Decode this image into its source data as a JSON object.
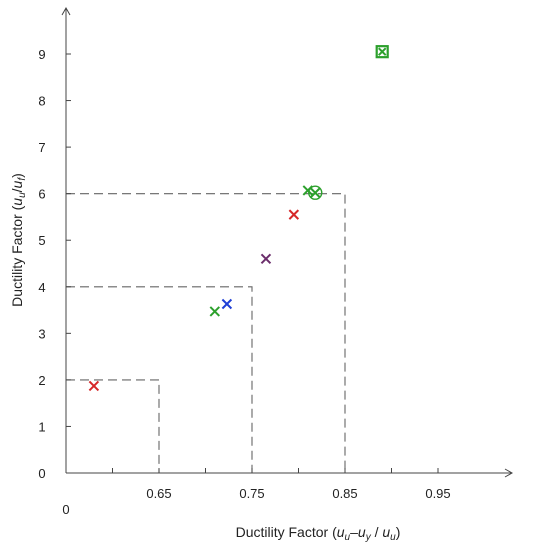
{
  "chart_data": {
    "type": "scatter",
    "xlabel": "Ductility Factor (uᵤ–uᵧ / uᵤ)",
    "xlabel_parts": {
      "pre": "Ductility Factor (",
      "u1": "u",
      "s1": "u",
      "dash": "–",
      "u2": "u",
      "s2": "y",
      "slash": " / ",
      "u3": "u",
      "s3": "u",
      "post": ")"
    },
    "ylabel": "Ductility Factor (uᵤ/uᵧ)",
    "ylabel_parts": {
      "pre": "Ductility Factor (",
      "u1": "u",
      "s1": "u",
      "slash": "/",
      "u2": "u",
      "s2": "f",
      "post": ")"
    },
    "origin_label": "0",
    "xlim": [
      0.55,
      0.99
    ],
    "ylim": [
      0,
      10
    ],
    "x_ticks": [
      {
        "value": 0.65,
        "label": "0.65"
      },
      {
        "value": 0.75,
        "label": "0.75"
      },
      {
        "value": 0.85,
        "label": "0.85"
      },
      {
        "value": 0.95,
        "label": "0.95"
      }
    ],
    "x_minor_ticks": [
      0.6,
      0.7,
      0.8,
      0.9
    ],
    "y_ticks": [
      {
        "value": 0,
        "label": "0"
      },
      {
        "value": 1,
        "label": "1"
      },
      {
        "value": 2,
        "label": "2"
      },
      {
        "value": 3,
        "label": "3"
      },
      {
        "value": 4,
        "label": "4"
      },
      {
        "value": 5,
        "label": "5"
      },
      {
        "value": 6,
        "label": "6"
      },
      {
        "value": 7,
        "label": "7"
      },
      {
        "value": 8,
        "label": "8"
      },
      {
        "value": 9,
        "label": "9"
      }
    ],
    "reference_boxes": [
      {
        "x": 0.65,
        "y": 2
      },
      {
        "x": 0.75,
        "y": 4
      },
      {
        "x": 0.85,
        "y": 6
      }
    ],
    "points": [
      {
        "x": 0.58,
        "y": 1.87,
        "marker": "x",
        "color": "#d62728"
      },
      {
        "x": 0.71,
        "y": 3.47,
        "marker": "x",
        "color": "#2ca02c"
      },
      {
        "x": 0.723,
        "y": 3.63,
        "marker": "x",
        "color": "#1f3fd6"
      },
      {
        "x": 0.765,
        "y": 4.6,
        "marker": "x",
        "color": "#6b2d6b"
      },
      {
        "x": 0.795,
        "y": 5.55,
        "marker": "x",
        "color": "#d62728"
      },
      {
        "x": 0.81,
        "y": 6.07,
        "marker": "x",
        "color": "#2ca02c"
      },
      {
        "x": 0.818,
        "y": 6.02,
        "marker": "circle-x",
        "color": "#2ca02c"
      },
      {
        "x": 0.89,
        "y": 9.05,
        "marker": "square-x",
        "color": "#2ca02c"
      }
    ]
  }
}
